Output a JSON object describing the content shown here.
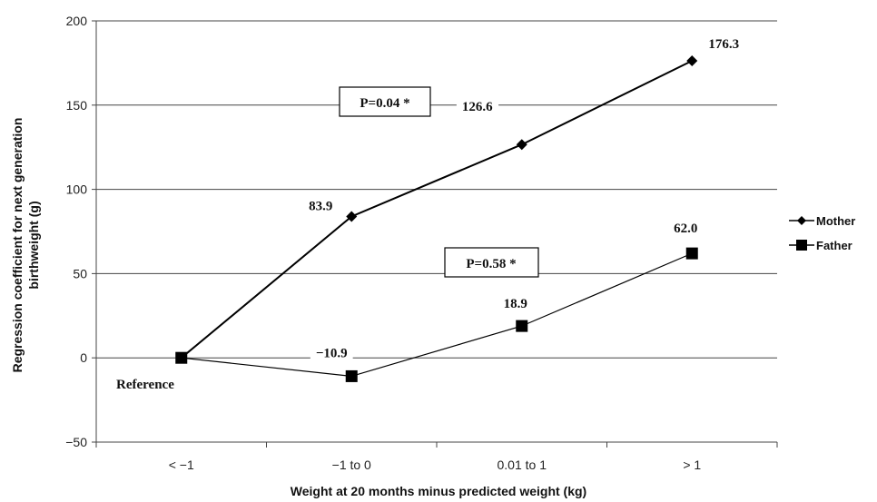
{
  "chart_data": {
    "type": "line",
    "categories": [
      "< −1",
      "−1 to 0",
      "0.01 to 1",
      "> 1"
    ],
    "xlabel": "Weight at 20 months minus predicted weight (kg)",
    "ylabel_lines": [
      "Regression coefficient for next generation",
      "birthweight (g)"
    ],
    "ylim": [
      -50,
      200
    ],
    "yticks": [
      -50,
      0,
      50,
      100,
      150,
      200
    ],
    "ytick_labels": [
      "−50",
      "0",
      "50",
      "100",
      "150",
      "200"
    ],
    "grid": true,
    "legend_position": "right",
    "series": [
      {
        "name": "Mother",
        "marker": "diamond",
        "values": [
          0,
          83.9,
          126.6,
          176.3
        ],
        "labels": [
          "",
          "83.9",
          "126.6",
          "176.3"
        ],
        "color": "#000000"
      },
      {
        "name": "Father",
        "marker": "square",
        "values": [
          0,
          -10.9,
          18.9,
          62.0
        ],
        "labels": [
          "",
          "−10.9",
          "18.9",
          "62.0"
        ],
        "color": "#000000"
      }
    ],
    "annotations": {
      "reference": "Reference",
      "mother_p": "P=0.04 *",
      "father_p": "P=0.58 *"
    }
  }
}
